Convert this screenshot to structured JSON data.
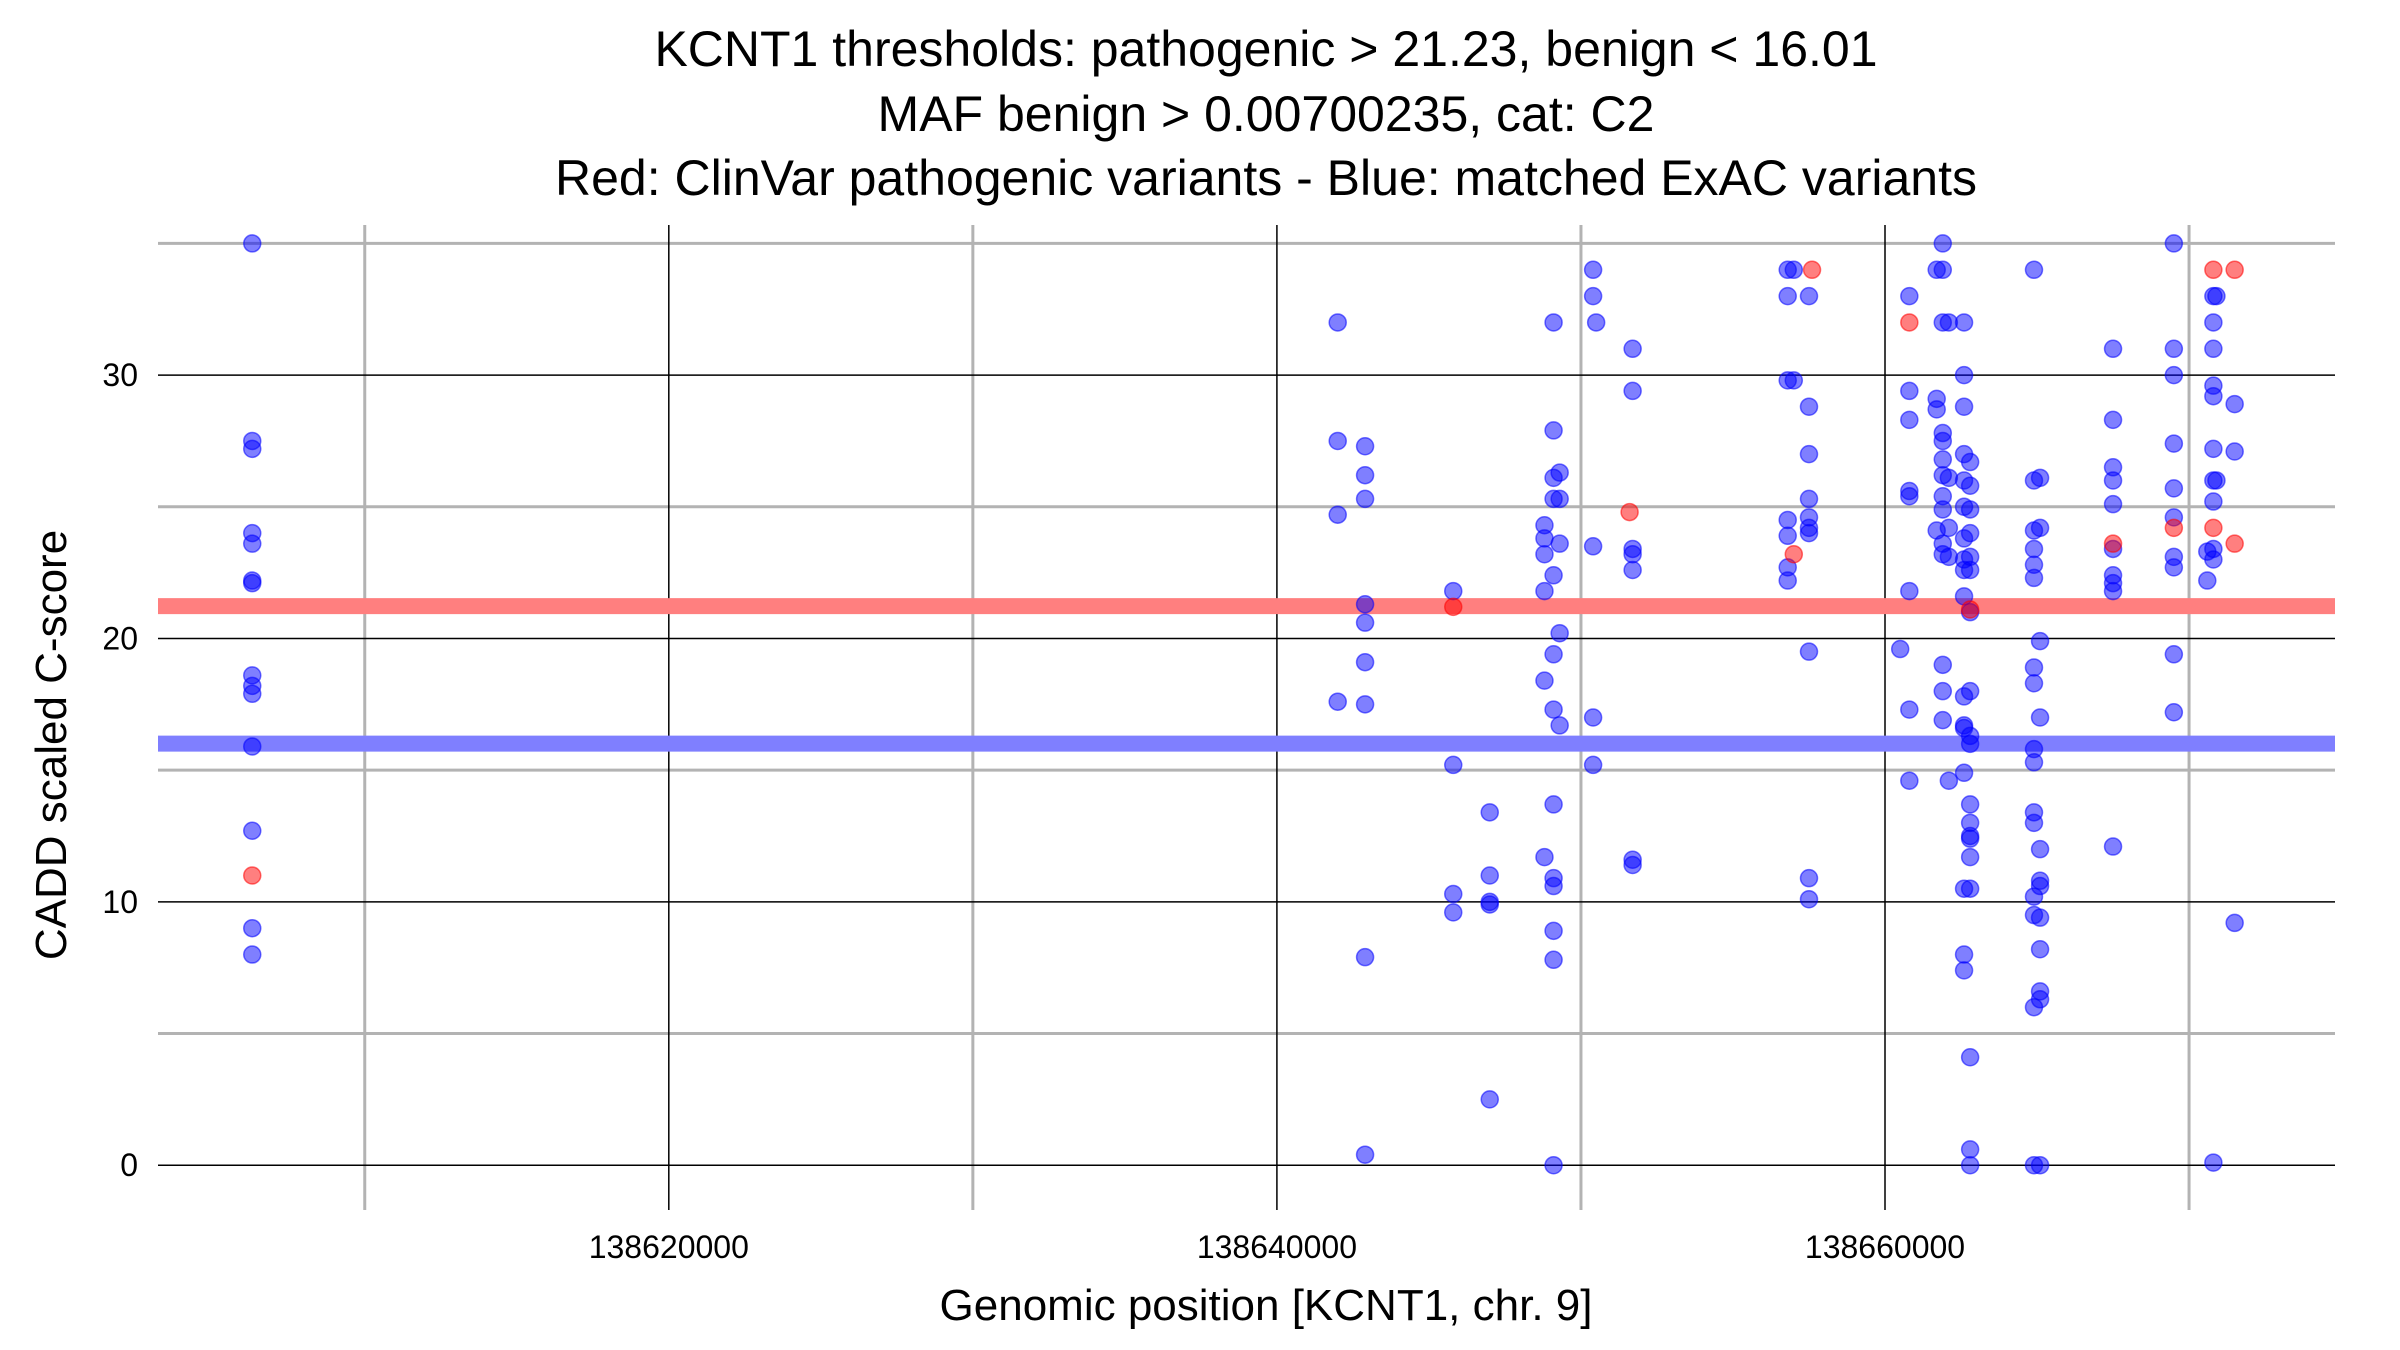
{
  "chart_data": {
    "type": "scatter",
    "title_lines": [
      "KCNT1 thresholds: pathogenic > 21.23, benign < 16.01",
      "MAF benign > 0.00700235, cat: C2",
      "Red: ClinVar pathogenic variants - Blue: matched ExAC variants"
    ],
    "xlabel": "Genomic position [KCNT1, chr. 9]",
    "ylabel": "CADD scaled C-score",
    "xlim": [
      138603200,
      138674800
    ],
    "ylim": [
      -1.7,
      35.7
    ],
    "x_major_ticks": [
      138620000,
      138640000,
      138660000
    ],
    "x_tick_labels": [
      "138620000",
      "138640000",
      "138660000"
    ],
    "x_minor_ticks": [
      138610000,
      138630000,
      138650000,
      138670000
    ],
    "y_major_ticks": [
      0,
      10,
      20,
      30
    ],
    "y_tick_labels": [
      "0",
      "10",
      "20",
      "30"
    ],
    "y_minor_ticks": [
      5,
      15,
      25,
      35
    ],
    "thresholds": [
      {
        "name": "pathogenic",
        "value": 21.23,
        "color": "#ff7f7f"
      },
      {
        "name": "benign",
        "value": 16.01,
        "color": "#7f7fff"
      }
    ],
    "series": [
      {
        "name": "ClinVar pathogenic variants",
        "color": "#ff0000",
        "points": [
          [
            138606300,
            11.0
          ],
          [
            138645800,
            21.2
          ],
          [
            138651600,
            24.8
          ],
          [
            138657000,
            23.2
          ],
          [
            138657600,
            34.0
          ],
          [
            138660800,
            32.0
          ],
          [
            138662800,
            21.1
          ],
          [
            138667500,
            23.6
          ],
          [
            138669500,
            24.2
          ],
          [
            138670800,
            34.0
          ],
          [
            138670800,
            24.2
          ],
          [
            138671500,
            34.0
          ],
          [
            138671500,
            23.6
          ]
        ]
      },
      {
        "name": "matched ExAC variants",
        "color": "#0000ff",
        "points": [
          [
            138606300,
            35.0
          ],
          [
            138606300,
            27.5
          ],
          [
            138606300,
            27.2
          ],
          [
            138606300,
            24.0
          ],
          [
            138606300,
            23.6
          ],
          [
            138606300,
            22.2
          ],
          [
            138606300,
            22.1
          ],
          [
            138606300,
            18.6
          ],
          [
            138606300,
            18.2
          ],
          [
            138606300,
            17.9
          ],
          [
            138606300,
            15.9
          ],
          [
            138606300,
            12.7
          ],
          [
            138606300,
            9.0
          ],
          [
            138606300,
            8.0
          ],
          [
            138642000,
            32.0
          ],
          [
            138642000,
            27.5
          ],
          [
            138642000,
            24.7
          ],
          [
            138642000,
            17.6
          ],
          [
            138642900,
            27.3
          ],
          [
            138642900,
            26.2
          ],
          [
            138642900,
            25.3
          ],
          [
            138642900,
            21.3
          ],
          [
            138642900,
            20.6
          ],
          [
            138642900,
            19.1
          ],
          [
            138642900,
            17.5
          ],
          [
            138642900,
            7.9
          ],
          [
            138642900,
            0.4
          ],
          [
            138645800,
            21.8
          ],
          [
            138645800,
            15.2
          ],
          [
            138645800,
            10.3
          ],
          [
            138645800,
            9.6
          ],
          [
            138647000,
            13.4
          ],
          [
            138647000,
            11.0
          ],
          [
            138647000,
            10.0
          ],
          [
            138647000,
            9.9
          ],
          [
            138647000,
            2.5
          ],
          [
            138648800,
            24.3
          ],
          [
            138648800,
            23.8
          ],
          [
            138648800,
            23.2
          ],
          [
            138648800,
            21.8
          ],
          [
            138648800,
            18.4
          ],
          [
            138648800,
            11.7
          ],
          [
            138649100,
            32.0
          ],
          [
            138649100,
            27.9
          ],
          [
            138649100,
            26.1
          ],
          [
            138649100,
            25.3
          ],
          [
            138649100,
            22.4
          ],
          [
            138649100,
            19.4
          ],
          [
            138649100,
            17.3
          ],
          [
            138649100,
            13.7
          ],
          [
            138649100,
            10.9
          ],
          [
            138649100,
            10.6
          ],
          [
            138649100,
            8.9
          ],
          [
            138649100,
            7.8
          ],
          [
            138649100,
            0.0
          ],
          [
            138649300,
            26.3
          ],
          [
            138649300,
            25.3
          ],
          [
            138649300,
            23.6
          ],
          [
            138649300,
            20.2
          ],
          [
            138649300,
            16.7
          ],
          [
            138650400,
            34.0
          ],
          [
            138650400,
            33.0
          ],
          [
            138650400,
            23.5
          ],
          [
            138650400,
            17.0
          ],
          [
            138650400,
            15.2
          ],
          [
            138650500,
            32.0
          ],
          [
            138651700,
            31.0
          ],
          [
            138651700,
            29.4
          ],
          [
            138651700,
            23.4
          ],
          [
            138651700,
            23.2
          ],
          [
            138651700,
            22.6
          ],
          [
            138651700,
            11.6
          ],
          [
            138651700,
            11.4
          ],
          [
            138656800,
            34.0
          ],
          [
            138656800,
            29.8
          ],
          [
            138656800,
            24.5
          ],
          [
            138656800,
            23.9
          ],
          [
            138656800,
            22.7
          ],
          [
            138656800,
            22.2
          ],
          [
            138656800,
            33.0
          ],
          [
            138657000,
            34.0
          ],
          [
            138657000,
            29.8
          ],
          [
            138657500,
            33.0
          ],
          [
            138657500,
            28.8
          ],
          [
            138657500,
            27.0
          ],
          [
            138657500,
            25.3
          ],
          [
            138657500,
            24.6
          ],
          [
            138657500,
            24.2
          ],
          [
            138657500,
            24.0
          ],
          [
            138657500,
            19.5
          ],
          [
            138657500,
            10.9
          ],
          [
            138657500,
            10.1
          ],
          [
            138660500,
            19.6
          ],
          [
            138660800,
            33.0
          ],
          [
            138660800,
            29.4
          ],
          [
            138660800,
            28.3
          ],
          [
            138660800,
            25.6
          ],
          [
            138660800,
            25.4
          ],
          [
            138660800,
            21.8
          ],
          [
            138660800,
            17.3
          ],
          [
            138660800,
            14.6
          ],
          [
            138661700,
            34.0
          ],
          [
            138661700,
            29.1
          ],
          [
            138661700,
            28.7
          ],
          [
            138661700,
            24.1
          ],
          [
            138661900,
            35.0
          ],
          [
            138661900,
            34.0
          ],
          [
            138661900,
            32.0
          ],
          [
            138661900,
            27.8
          ],
          [
            138661900,
            27.5
          ],
          [
            138661900,
            26.8
          ],
          [
            138661900,
            26.2
          ],
          [
            138661900,
            25.4
          ],
          [
            138661900,
            24.9
          ],
          [
            138661900,
            23.6
          ],
          [
            138661900,
            23.2
          ],
          [
            138661900,
            19.0
          ],
          [
            138661900,
            18.0
          ],
          [
            138661900,
            16.9
          ],
          [
            138662100,
            32.0
          ],
          [
            138662100,
            26.1
          ],
          [
            138662100,
            24.2
          ],
          [
            138662100,
            23.1
          ],
          [
            138662100,
            14.6
          ],
          [
            138662600,
            32.0
          ],
          [
            138662600,
            30.0
          ],
          [
            138662600,
            28.8
          ],
          [
            138662600,
            27.0
          ],
          [
            138662600,
            26.0
          ],
          [
            138662600,
            25.0
          ],
          [
            138662600,
            23.8
          ],
          [
            138662600,
            23.0
          ],
          [
            138662600,
            22.6
          ],
          [
            138662600,
            21.6
          ],
          [
            138662600,
            17.8
          ],
          [
            138662600,
            16.7
          ],
          [
            138662600,
            16.6
          ],
          [
            138662600,
            14.9
          ],
          [
            138662600,
            10.5
          ],
          [
            138662600,
            8.0
          ],
          [
            138662600,
            7.4
          ],
          [
            138662800,
            26.7
          ],
          [
            138662800,
            25.8
          ],
          [
            138662800,
            24.9
          ],
          [
            138662800,
            24.0
          ],
          [
            138662800,
            23.1
          ],
          [
            138662800,
            22.6
          ],
          [
            138662800,
            21.0
          ],
          [
            138662800,
            18.0
          ],
          [
            138662800,
            16.3
          ],
          [
            138662800,
            16.0
          ],
          [
            138662800,
            13.7
          ],
          [
            138662800,
            13.0
          ],
          [
            138662800,
            12.5
          ],
          [
            138662800,
            12.4
          ],
          [
            138662800,
            11.7
          ],
          [
            138662800,
            10.5
          ],
          [
            138662800,
            4.1
          ],
          [
            138662800,
            0.6
          ],
          [
            138662800,
            0.0
          ],
          [
            138664900,
            34.0
          ],
          [
            138664900,
            26.0
          ],
          [
            138664900,
            24.1
          ],
          [
            138664900,
            23.4
          ],
          [
            138664900,
            22.8
          ],
          [
            138664900,
            22.3
          ],
          [
            138664900,
            18.9
          ],
          [
            138664900,
            18.3
          ],
          [
            138664900,
            15.8
          ],
          [
            138664900,
            15.3
          ],
          [
            138664900,
            13.4
          ],
          [
            138664900,
            13.0
          ],
          [
            138664900,
            10.2
          ],
          [
            138664900,
            9.5
          ],
          [
            138664900,
            6.0
          ],
          [
            138664900,
            0.0
          ],
          [
            138665100,
            26.1
          ],
          [
            138665100,
            24.2
          ],
          [
            138665100,
            19.9
          ],
          [
            138665100,
            17.0
          ],
          [
            138665100,
            12.0
          ],
          [
            138665100,
            10.8
          ],
          [
            138665100,
            10.6
          ],
          [
            138665100,
            9.4
          ],
          [
            138665100,
            8.2
          ],
          [
            138665100,
            6.6
          ],
          [
            138665100,
            6.3
          ],
          [
            138665100,
            0.0
          ],
          [
            138667500,
            31.0
          ],
          [
            138667500,
            28.3
          ],
          [
            138667500,
            26.5
          ],
          [
            138667500,
            26.0
          ],
          [
            138667500,
            25.1
          ],
          [
            138667500,
            23.4
          ],
          [
            138667500,
            22.4
          ],
          [
            138667500,
            22.1
          ],
          [
            138667500,
            21.8
          ],
          [
            138667500,
            12.1
          ],
          [
            138669500,
            35.0
          ],
          [
            138669500,
            31.0
          ],
          [
            138669500,
            30.0
          ],
          [
            138669500,
            27.4
          ],
          [
            138669500,
            25.7
          ],
          [
            138669500,
            24.6
          ],
          [
            138669500,
            23.1
          ],
          [
            138669500,
            22.7
          ],
          [
            138669500,
            19.4
          ],
          [
            138669500,
            17.2
          ],
          [
            138670600,
            23.3
          ],
          [
            138670600,
            22.2
          ],
          [
            138670800,
            33.0
          ],
          [
            138670800,
            32.0
          ],
          [
            138670800,
            31.0
          ],
          [
            138670800,
            29.6
          ],
          [
            138670800,
            29.2
          ],
          [
            138670800,
            27.2
          ],
          [
            138670800,
            26.0
          ],
          [
            138670800,
            25.2
          ],
          [
            138670800,
            23.4
          ],
          [
            138670800,
            23.0
          ],
          [
            138670800,
            0.1
          ],
          [
            138670900,
            33.0
          ],
          [
            138670900,
            26.0
          ],
          [
            138671500,
            28.9
          ],
          [
            138671500,
            27.1
          ],
          [
            138671500,
            9.2
          ]
        ]
      }
    ]
  }
}
